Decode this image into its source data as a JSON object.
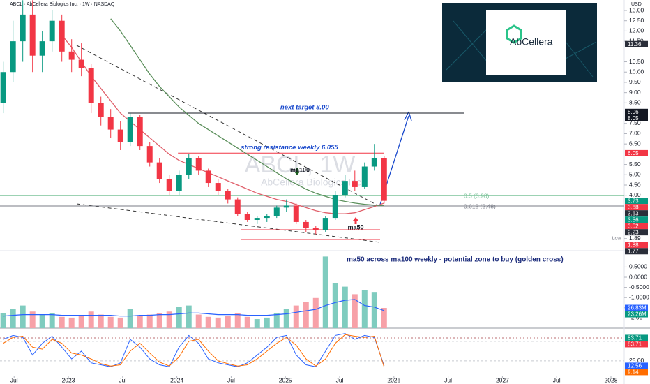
{
  "logo": {
    "text": "AbCellera"
  },
  "chart_data": [
    {
      "type": "candlestick",
      "title": "ABCL · AbCellera Biologics Inc. · 1W · NASDAQ",
      "watermark": "ABCL, 1W",
      "watermark_subtitle": "AbCellera Biologics Inc.",
      "currency": "USD",
      "up_color": "#089981",
      "down_color": "#f23645",
      "x": [
        2022.4,
        2022.49,
        2022.58,
        2022.67,
        2022.76,
        2022.85,
        2022.94,
        2023.03,
        2023.12,
        2023.21,
        2023.3,
        2023.39,
        2023.48,
        2023.57,
        2023.66,
        2023.75,
        2023.84,
        2023.93,
        2024.02,
        2024.11,
        2024.2,
        2024.29,
        2024.38,
        2024.47,
        2024.56,
        2024.65,
        2024.74,
        2024.83,
        2024.92,
        2025.01,
        2025.1,
        2025.19,
        2025.28,
        2025.37,
        2025.46,
        2025.55,
        2025.64,
        2025.73,
        2025.82,
        2025.91
      ],
      "open": [
        8.5,
        10,
        11.5,
        12.8,
        10.8,
        11.5,
        12.5,
        11,
        10.6,
        10.2,
        8.5,
        7.8,
        7.2,
        6.6,
        7.8,
        6.4,
        5.6,
        4.8,
        4.2,
        5.0,
        5.8,
        5.2,
        4.6,
        4.2,
        3.8,
        3.1,
        2.8,
        2.9,
        3.0,
        3.4,
        3.5,
        2.7,
        2.4,
        2.3,
        2.9,
        4.0,
        4.7,
        4.4,
        5.4,
        5.8
      ],
      "high": [
        10.5,
        12.5,
        13.5,
        13.5,
        12,
        13,
        12.8,
        11.6,
        11.4,
        10.4,
        8.8,
        8.2,
        7.6,
        8.0,
        7.9,
        6.6,
        5.8,
        5.0,
        5.2,
        6.0,
        5.9,
        5.3,
        4.8,
        4.3,
        3.9,
        3.2,
        3.0,
        3.1,
        3.5,
        3.8,
        3.6,
        2.8,
        2.5,
        3.0,
        4.2,
        5.0,
        5.2,
        5.6,
        6.5,
        5.9
      ],
      "low": [
        8,
        9.5,
        10.5,
        10,
        10,
        11,
        10.5,
        10,
        9.8,
        8,
        7.4,
        6.8,
        6.2,
        6.4,
        6.2,
        5.4,
        4.6,
        4.0,
        4.0,
        4.8,
        5.0,
        4.4,
        4.0,
        3.6,
        3.0,
        2.7,
        2.6,
        2.7,
        2.9,
        3.2,
        2.6,
        2.2,
        2.1,
        2.2,
        2.8,
        3.9,
        4.2,
        4.3,
        5.2,
        3.6
      ],
      "close": [
        10,
        11.5,
        12.8,
        10.8,
        11.5,
        12.5,
        11,
        10.6,
        10.2,
        8.5,
        7.8,
        7.2,
        6.6,
        7.8,
        6.4,
        5.6,
        4.8,
        4.2,
        5.0,
        5.8,
        5.2,
        4.6,
        4.2,
        3.8,
        3.1,
        2.8,
        2.9,
        3.0,
        3.4,
        3.5,
        2.7,
        2.4,
        2.3,
        2.9,
        4.0,
        4.7,
        4.4,
        5.4,
        5.8,
        3.73
      ],
      "series": [
        {
          "name": "ma50",
          "color": "#e0606b",
          "values": [
            null,
            null,
            null,
            null,
            null,
            null,
            11.8,
            11.2,
            10.5,
            9.8,
            9.2,
            8.6,
            8.0,
            7.6,
            7.2,
            6.8,
            6.4,
            6.0,
            5.7,
            5.5,
            5.3,
            5.1,
            4.9,
            4.7,
            4.5,
            4.3,
            4.1,
            3.95,
            3.8,
            3.7,
            3.55,
            3.4,
            3.25,
            3.15,
            3.1,
            3.1,
            3.15,
            3.3,
            3.45,
            3.62
          ]
        },
        {
          "name": "ma100",
          "color": "#5b8f5b",
          "values": [
            null,
            null,
            null,
            null,
            null,
            null,
            null,
            null,
            null,
            null,
            null,
            12.6,
            12.0,
            11.3,
            10.6,
            9.9,
            9.3,
            8.8,
            8.3,
            7.9,
            7.5,
            7.2,
            6.9,
            6.6,
            6.3,
            6.0,
            5.7,
            5.4,
            5.1,
            4.8,
            4.55,
            4.3,
            4.1,
            3.95,
            3.8,
            3.7,
            3.62,
            3.56,
            3.52,
            3.5
          ]
        }
      ],
      "ylim": [
        1.44,
        13.51
      ],
      "yticks": [
        {
          "value": 13,
          "label": "13.00"
        },
        {
          "value": 12.5,
          "label": "12.50"
        },
        {
          "value": 12,
          "label": "12.00"
        },
        {
          "value": 11.5,
          "label": "11.50"
        },
        {
          "value": 10.5,
          "label": "10.50"
        },
        {
          "value": 10,
          "label": "10.00"
        },
        {
          "value": 9.5,
          "label": "9.50"
        },
        {
          "value": 9,
          "label": "9.00"
        },
        {
          "value": 8.5,
          "label": "8.50"
        },
        {
          "value": 7.5,
          "label": "7.50"
        },
        {
          "value": 7,
          "label": "7.00"
        },
        {
          "value": 6.5,
          "label": "6.50"
        },
        {
          "value": 5.5,
          "label": "5.50"
        },
        {
          "value": 5,
          "label": "5.00"
        },
        {
          "value": 4.5,
          "label": "4.50"
        },
        {
          "value": 4,
          "label": "4.00"
        }
      ],
      "price_tags": [
        {
          "value": 11.36,
          "color": "#2a2e39"
        },
        {
          "value": 8.06,
          "color": "#131722"
        },
        {
          "value": 8.05,
          "color": "#131722"
        },
        {
          "value": 6.05,
          "color": "#f23645"
        },
        {
          "value": 3.73,
          "color": "#089981"
        },
        {
          "value": 3.68,
          "color": "#f23645"
        },
        {
          "value": 3.63,
          "color": "#2a2e39"
        },
        {
          "value": 3.56,
          "color": "#089981"
        },
        {
          "value": 3.52,
          "color": "#f23645"
        },
        {
          "value": 2.23,
          "color": "#2a2e39"
        }
      ],
      "low_tag": {
        "label": "Low",
        "value": 1.89
      },
      "low_tags": [
        {
          "value": 1.88,
          "color": "#f23645"
        },
        {
          "value": 1.77,
          "color": "#2a2e39"
        }
      ],
      "fib_levels": [
        {
          "value": 3.98,
          "label": "0.5 (3.98)",
          "color": "#7cc49a"
        },
        {
          "value": 3.48,
          "label": "0.618 (3.48)",
          "color": "#787b86"
        }
      ],
      "annotations": [
        {
          "text": "next target 8.00",
          "value": 8.0,
          "color": "#131722",
          "from": 2023.55,
          "to": 2026.65
        },
        {
          "text": "strong resistance weekly 6.055",
          "value": 6.055,
          "color": "#f23645",
          "from": 2024.01,
          "to": 2025.91
        }
      ],
      "note": "ma50 across ma100 weekly - potential zone to buy (golden cross)"
    },
    {
      "type": "bar",
      "x": [
        2022.4,
        2022.49,
        2022.58,
        2022.67,
        2022.76,
        2022.85,
        2022.94,
        2023.03,
        2023.12,
        2023.21,
        2023.3,
        2023.39,
        2023.48,
        2023.57,
        2023.66,
        2023.75,
        2023.84,
        2023.93,
        2024.02,
        2024.11,
        2024.2,
        2024.29,
        2024.38,
        2024.47,
        2024.56,
        2024.65,
        2024.74,
        2024.83,
        2024.92,
        2025.01,
        2025.1,
        2025.19,
        2025.28,
        2025.37,
        2025.46,
        2025.55,
        2025.64,
        2025.73,
        2025.82,
        2025.91
      ],
      "ylim": [
        0,
        100
      ],
      "up_color": "#7fccbf",
      "down_color": "#f7a1a8",
      "values": [
        20,
        25,
        30,
        22,
        18,
        20,
        15,
        14,
        16,
        22,
        18,
        15,
        14,
        25,
        16,
        18,
        20,
        22,
        28,
        30,
        18,
        15,
        14,
        16,
        20,
        15,
        12,
        14,
        20,
        25,
        30,
        35,
        40,
        95,
        60,
        55,
        45,
        50,
        48,
        26.83
      ],
      "last_label": "26.83M",
      "last_color": "#2962ff",
      "ma": {
        "color": "#2962ff",
        "values": [
          16,
          17,
          18,
          18,
          18,
          18,
          17,
          17,
          17,
          17,
          17,
          17,
          16,
          16,
          17,
          17,
          18,
          18,
          19,
          20,
          20,
          19,
          18,
          18,
          18,
          17,
          17,
          17,
          18,
          19,
          21,
          23,
          25,
          30,
          34,
          37,
          38,
          30,
          28,
          23.26
        ],
        "last_label": "23.26M",
        "last_color": "#089981"
      },
      "y2lim": [
        -2.5,
        1.2
      ],
      "y2ticks": [
        {
          "value": 0.5,
          "label": "0.5000"
        },
        {
          "value": 0,
          "label": "0.0000"
        },
        {
          "value": -0.5,
          "label": "-0.5000"
        },
        {
          "value": -1,
          "label": "-1.0000"
        },
        {
          "value": -1.5,
          "label": "-1.50"
        },
        {
          "value": -2,
          "label": "-2.00"
        }
      ]
    },
    {
      "type": "line",
      "x": [
        2022.4,
        2022.49,
        2022.58,
        2022.67,
        2022.76,
        2022.85,
        2022.94,
        2023.03,
        2023.12,
        2023.21,
        2023.3,
        2023.39,
        2023.48,
        2023.57,
        2023.66,
        2023.75,
        2023.84,
        2023.93,
        2024.02,
        2024.11,
        2024.2,
        2024.29,
        2024.38,
        2024.47,
        2024.56,
        2024.65,
        2024.74,
        2024.83,
        2024.92,
        2025.01,
        2025.1,
        2025.19,
        2025.28,
        2025.37,
        2025.46,
        2025.55,
        2025.64,
        2025.73,
        2025.82,
        2025.91
      ],
      "series": [
        {
          "color": "#2962ff",
          "values": [
            80,
            90,
            85,
            40,
            70,
            88,
            60,
            30,
            50,
            20,
            15,
            10,
            20,
            80,
            60,
            30,
            15,
            10,
            60,
            90,
            70,
            30,
            20,
            15,
            10,
            20,
            40,
            60,
            85,
            90,
            40,
            15,
            10,
            50,
            90,
            95,
            80,
            90,
            85,
            12.56
          ]
        },
        {
          "color": "#ff6d00",
          "values": [
            70,
            85,
            88,
            60,
            55,
            80,
            70,
            45,
            40,
            30,
            18,
            12,
            15,
            50,
            70,
            45,
            22,
            12,
            35,
            75,
            80,
            50,
            25,
            18,
            12,
            15,
            30,
            50,
            70,
            85,
            65,
            30,
            12,
            30,
            70,
            92,
            88,
            85,
            88,
            9.14
          ]
        }
      ],
      "ylim": [
        -25,
        105
      ],
      "yticks": [
        {
          "value": 75,
          "label": "75.00"
        },
        {
          "value": 25,
          "label": "25.00"
        }
      ],
      "levels": [
        {
          "value": 83.71,
          "label": "83.71",
          "color": "#089981"
        },
        {
          "value": 83.71,
          "label": "83.71",
          "color": "#f23645"
        }
      ],
      "xlim": [
        2022.37,
        2028.09
      ],
      "xticks": [
        {
          "value": 2022.5,
          "label": "Jul"
        },
        2023,
        {
          "value": 2023.5,
          "label": "Jul"
        },
        2024,
        {
          "value": 2024.5,
          "label": "Jul"
        },
        2025,
        {
          "value": 2025.5,
          "label": "Jul"
        },
        2026,
        {
          "value": 2026.5,
          "label": "Jul"
        },
        2027,
        {
          "value": 2027.5,
          "label": "Jul"
        },
        2028
      ]
    }
  ]
}
